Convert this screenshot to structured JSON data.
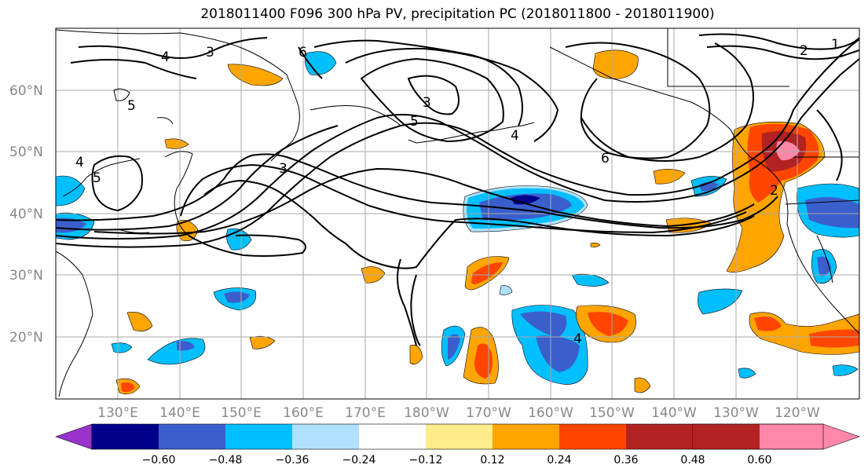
{
  "title": "2018011400 F096 300 hPa PV, precipitation PC (2018011800 - 2018011900)",
  "map": {
    "lat_labels": [
      "60°N",
      "50°N",
      "40°N",
      "30°N",
      "20°N"
    ],
    "lon_labels": [
      "130°E",
      "140°E",
      "150°E",
      "160°E",
      "170°E",
      "180°W",
      "170°W",
      "160°W",
      "150°W",
      "140°W",
      "130°W",
      "120°W"
    ],
    "contour_labels": [
      "4",
      "3",
      "6",
      "5",
      "4",
      "5",
      "3",
      "3",
      "5",
      "4",
      "6",
      "2",
      "1",
      "4",
      "2"
    ]
  },
  "colorbar": {
    "tick_labels": [
      "−0.60",
      "−0.48",
      "−0.36",
      "−0.24",
      "−0.12",
      "0.12",
      "0.24",
      "0.36",
      "0.48",
      "0.60"
    ],
    "colors": [
      "#9933cc",
      "#00008b",
      "#3a5fcd",
      "#00bfff",
      "#b0e2ff",
      "#ffffff",
      "#ffec8b",
      "#ffa500",
      "#ff4500",
      "#b22222",
      "#ff88aa"
    ]
  }
}
